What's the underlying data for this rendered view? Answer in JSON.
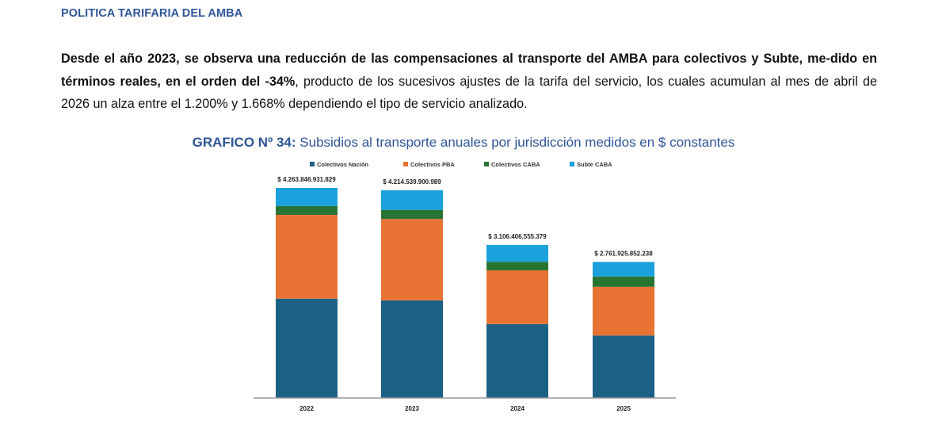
{
  "header": {
    "section_title": "POLITICA TARIFARIA DEL AMBA"
  },
  "paragraph": {
    "bold_part": "Desde el año 2023, se observa una reducción de las compensaciones al transporte del AMBA para colectivos y Subte, me-dido en términos reales, en el orden del -34%",
    "regular_part": ", producto de los sucesivos ajustes de la tarifa del servicio, los cuales acumulan al mes de abril de 2026 un alza entre el 1.200% y 1.668% dependiendo el tipo de servicio analizado."
  },
  "chart_heading": {
    "number": "GRAFICO Nº 34:",
    "text": "Subsidios al transporte anuales por jurisdicción medidos en $ constantes"
  },
  "colors": {
    "colectivos_nacion": "#1b6186",
    "colectivos_pba": "#e97334",
    "colectivos_caba": "#277433",
    "subte_caba": "#1ba1db"
  },
  "chart_data": {
    "type": "bar",
    "stacked": true,
    "categories": [
      "2022",
      "2023",
      "2024",
      "2025"
    ],
    "series": [
      {
        "name": "Colectivos Nación",
        "values": [
          2016000000000,
          1981000000000,
          1500000000000,
          1268000000000
        ]
      },
      {
        "name": "Colectivos PBA",
        "values": [
          1700000000000,
          1652000000000,
          1091000000000,
          988000000000
        ]
      },
      {
        "name": "Colectivos CABA",
        "values": [
          180000000000,
          184000000000,
          170000000000,
          210000000000
        ]
      },
      {
        "name": "Subte CABA",
        "values": [
          367846931829,
          397539900989,
          345406555379,
          295925852238
        ]
      }
    ],
    "totals": [
      "$ 4.263.846.931.829",
      "$ 4.214.539.900.989",
      "$ 3.106.406.555.379",
      "$ 2.761.925.852.238"
    ],
    "total_values": [
      4263846931829,
      4214539900989,
      3106406555379,
      2761925852238
    ],
    "ylim": [
      0,
      4263846931829
    ],
    "legend_position": "top",
    "grid": false
  }
}
